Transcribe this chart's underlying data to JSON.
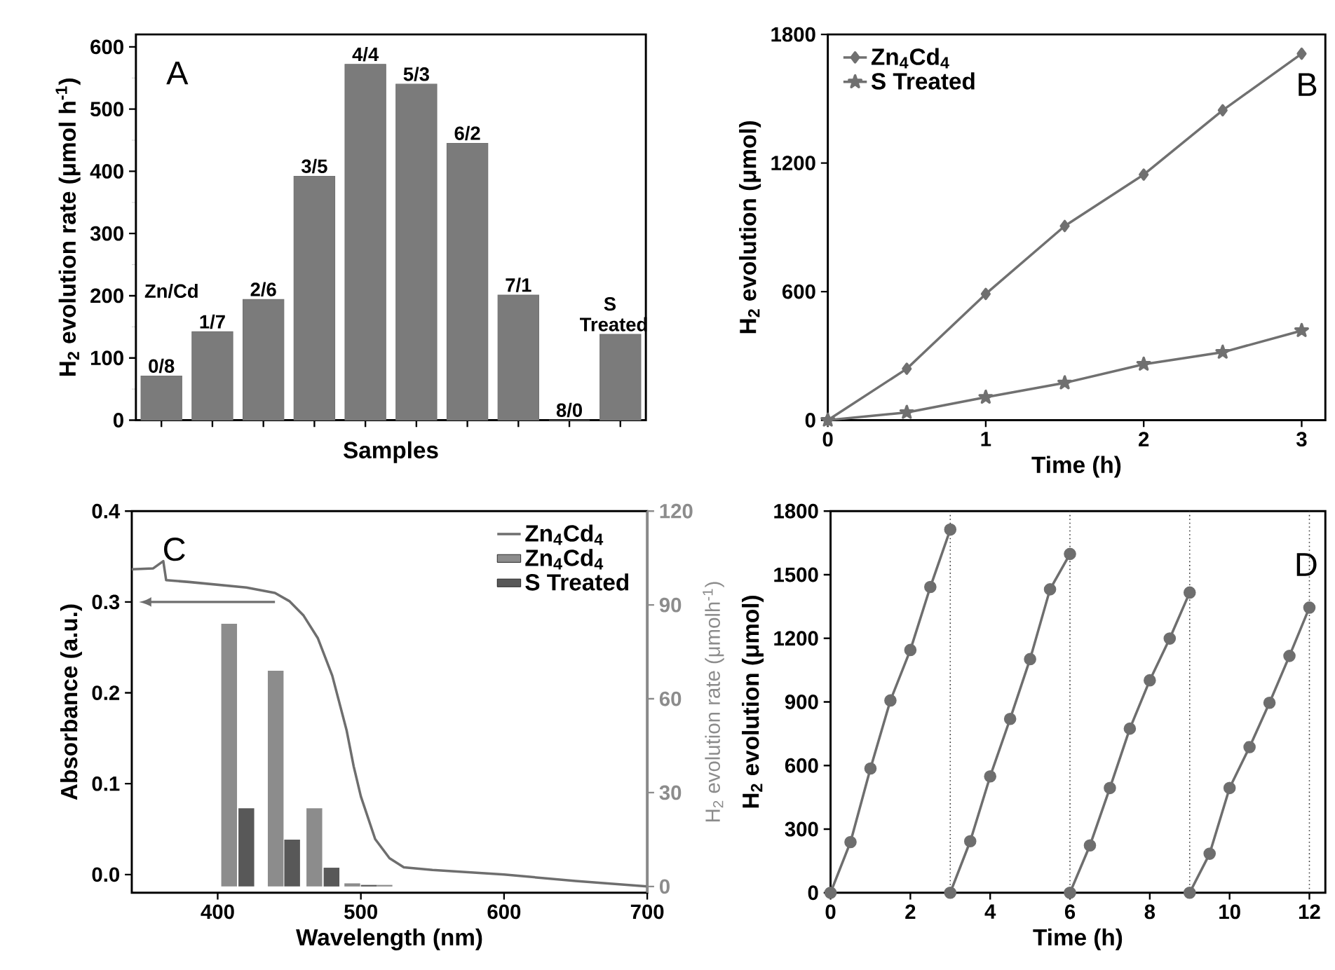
{
  "chart_data": [
    {
      "type": "bar",
      "xlabel": "Samples",
      "ylabel": "H$_{2}$ evolution rate (μmol h$^{-1}$)",
      "categories": [
        "0/8",
        "1/7",
        "2/6",
        "3/5",
        "4/4",
        "5/3",
        "6/2",
        "7/1",
        "8/0",
        "S Treated"
      ],
      "values": [
        71,
        142,
        194,
        392,
        572,
        540,
        445,
        201,
        0,
        138
      ],
      "color": "#7b7b7b",
      "ylim": [
        0,
        620
      ],
      "yticks": [
        0,
        100,
        200,
        300,
        400,
        500,
        600
      ],
      "tick_labels": "y",
      "annotations": [
        "A",
        "Zn/Cd"
      ]
    },
    {
      "type": "line",
      "xlabel": "Time (h)",
      "ylabel": "H$_{2}$ evolution (μmol)",
      "x": [
        0,
        0.5,
        1,
        1.5,
        2,
        2.5,
        3
      ],
      "series": [
        {
          "name": "Zn$_{4}$Cd$_{4}$",
          "color": "#707070",
          "marker": "diamond",
          "values": [
            0,
            240,
            589,
            906,
            1146,
            1446,
            1710
          ]
        },
        {
          "name": "S Treated",
          "color": "#707070",
          "marker": "star",
          "values": [
            0,
            36,
            107,
            174,
            261,
            317,
            418
          ]
        }
      ],
      "xlim": [
        0,
        3.15
      ],
      "xticks": [
        0,
        1,
        2,
        3
      ],
      "ylim": [
        0,
        1800
      ],
      "yticks": [
        0,
        600,
        1200,
        1800
      ],
      "legend": "top left",
      "annotations": [
        "B"
      ]
    },
    {
      "type": "line",
      "xlabel": "Wavelength (nm)",
      "ylabel": "Absorbance (a.u.)",
      "y2label": "H$_{2}$ evolution rate (μmolh$^{-1}$)",
      "series": [
        {
          "name": "Zn$_{4}$Cd$_{4}$",
          "color": "#6e6e6e",
          "x": [
            340,
            355,
            362,
            364,
            380,
            420,
            440,
            450,
            460,
            470,
            480,
            490,
            495,
            500,
            510,
            520,
            530,
            550,
            600,
            650,
            700
          ],
          "values": [
            0.336,
            0.337,
            0.345,
            0.324,
            0.322,
            0.316,
            0.31,
            0.301,
            0.285,
            0.26,
            0.219,
            0.159,
            0.119,
            0.086,
            0.039,
            0.018,
            0.008,
            0.005,
            0.0,
            -0.007,
            -0.013
          ]
        },
        {
          "name": "Zn$_{4}$Cd$_{4}$",
          "type": "bar",
          "axis": "y2",
          "color": "#8c8c8c",
          "x": [
            408,
            440.5,
            467.5,
            494,
            516.5
          ],
          "values": [
            84,
            69,
            25,
            1,
            0.5
          ]
        },
        {
          "name": "S Treated",
          "type": "bar",
          "axis": "y2",
          "color": "#585858",
          "x": [
            420,
            452,
            479.5,
            505.5
          ],
          "values": [
            25,
            15,
            6,
            0.5
          ]
        }
      ],
      "xlim": [
        340,
        700
      ],
      "xticks": [
        400,
        500,
        600,
        700
      ],
      "ylim": [
        -0.02,
        0.4
      ],
      "yticks": [
        {
          "value": 0,
          "label": "0.0"
        },
        0.1,
        0.2,
        0.3,
        0.4
      ],
      "y2lim": [
        -2,
        120
      ],
      "y2ticks": [
        0,
        30,
        60,
        90,
        120
      ],
      "legend": "top right",
      "annotations": [
        "C"
      ]
    },
    {
      "type": "line",
      "xlabel": "Time (h)",
      "ylabel": "H$_{2}$ evolution (μmol)",
      "marker": "circle",
      "series": [
        {
          "color": "#6e6e6e",
          "x": [
            0,
            0.5,
            1,
            1.5,
            2,
            2.5,
            3
          ],
          "values": [
            0,
            239,
            586,
            907,
            1145,
            1442,
            1713
          ]
        },
        {
          "color": "#6e6e6e",
          "x": [
            3,
            3.5,
            4,
            4.5,
            5,
            5.5,
            6
          ],
          "values": [
            0,
            243,
            549,
            820,
            1102,
            1431,
            1598
          ]
        },
        {
          "color": "#6e6e6e",
          "x": [
            6,
            6.5,
            7,
            7.5,
            8,
            8.5,
            9
          ],
          "values": [
            0,
            223,
            494,
            774,
            1002,
            1199,
            1416
          ]
        },
        {
          "color": "#6e6e6e",
          "x": [
            9,
            9.5,
            10,
            10.5,
            11,
            11.5,
            12
          ],
          "values": [
            0,
            184,
            494,
            687,
            896,
            1117,
            1345
          ]
        }
      ],
      "ref_lines": [
        {
          "axis": "x",
          "value": 3,
          "line_style": "dotted",
          "color": "#333333"
        },
        {
          "axis": "x",
          "value": 6,
          "line_style": "dotted",
          "color": "#333333"
        },
        {
          "axis": "x",
          "value": 9,
          "line_style": "dotted",
          "color": "#333333"
        },
        {
          "axis": "x",
          "value": 12,
          "line_style": "dotted",
          "color": "#333333"
        }
      ],
      "xlim": [
        0,
        12.4
      ],
      "xticks": [
        0,
        2,
        4,
        6,
        8,
        10,
        12
      ],
      "ylim": [
        0,
        1800
      ],
      "yticks": [
        0,
        300,
        600,
        900,
        1200,
        1500,
        1800
      ],
      "annotations": [
        "D"
      ]
    }
  ]
}
